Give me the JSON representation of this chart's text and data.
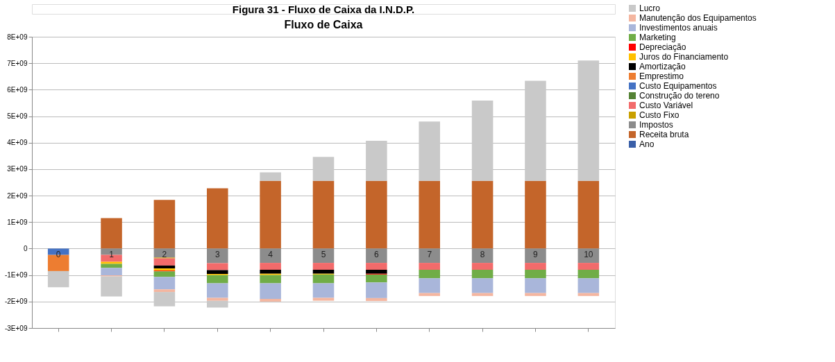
{
  "chart_data": {
    "type": "bar",
    "stacked": true,
    "title": "Fluxo de Caixa",
    "annotations": [
      "Figura 31 - Fluxo de Caixa da I.N.D.P."
    ],
    "categories": [
      null,
      null,
      null,
      null,
      null,
      null,
      null,
      null,
      null,
      null,
      null
    ],
    "ylim": [
      -3000000000.0,
      8000000000.0
    ],
    "yticks": [
      {
        "value": -3000000000.0,
        "label": "-3E+09"
      },
      {
        "value": -2000000000.0,
        "label": "-2E+09"
      },
      {
        "value": -1000000000.0,
        "label": "-1E+09"
      },
      0,
      {
        "value": 1000000000.0,
        "label": "1E+09"
      },
      {
        "value": 2000000000.0,
        "label": "2E+09"
      },
      {
        "value": 3000000000.0,
        "label": "3E+09"
      },
      {
        "value": 4000000000.0,
        "label": "4E+09"
      },
      {
        "value": 5000000000.0,
        "label": "5E+09"
      },
      {
        "value": 6000000000.0,
        "label": "6E+09"
      },
      {
        "value": 7000000000.0,
        "label": "7E+09"
      },
      {
        "value": 8000000000.0,
        "label": "8E+09"
      }
    ],
    "grid": "y",
    "legend": "right",
    "tick_labels": "y",
    "series": [
      {
        "name": "Ano",
        "color": "#3a5fa8",
        "values": [
          0,
          1,
          2,
          3,
          4,
          5,
          6,
          7,
          8,
          9,
          10
        ],
        "value_labels": [
          "0",
          "1",
          "2",
          "3",
          "4",
          "5",
          "6",
          "7",
          "8",
          "9",
          "10"
        ]
      },
      {
        "name": "Receita bruta",
        "color": "#c4652a",
        "values": [
          null,
          1150000000.0,
          1840000000.0,
          2280000000.0,
          2560000000.0,
          2560000000.0,
          2560000000.0,
          2560000000.0,
          2560000000.0,
          2560000000.0,
          2560000000.0
        ]
      },
      {
        "name": "Impostos",
        "color": "#8c8c8c",
        "values": [
          null,
          -240000000.0,
          -340000000.0,
          -550000000.0,
          -540000000.0,
          -540000000.0,
          -540000000.0,
          -540000000.0,
          -540000000.0,
          -540000000.0,
          -540000000.0
        ]
      },
      {
        "name": "Custo Fixo",
        "color": "#c9a000",
        "values": [
          null,
          null,
          -30000000.0,
          null,
          null,
          null,
          null,
          null,
          null,
          null,
          null
        ]
      },
      {
        "name": "Custo Variável",
        "color": "#f26b6b",
        "values": [
          null,
          -260000000.0,
          -270000000.0,
          -260000000.0,
          -260000000.0,
          -260000000.0,
          -260000000.0,
          -260000000.0,
          -260000000.0,
          -260000000.0,
          -260000000.0
        ]
      },
      {
        "name": "Construção do tereno",
        "color": "#548235",
        "values": [
          null,
          null,
          null,
          null,
          null,
          null,
          null,
          null,
          null,
          null,
          null
        ]
      },
      {
        "name": "Custo Equipamentos",
        "color": "#4472c4",
        "values": [
          -240000000.0,
          null,
          null,
          null,
          null,
          null,
          null,
          null,
          null,
          null,
          null
        ]
      },
      {
        "name": "Emprestimo",
        "color": "#ed7d31",
        "values": [
          -610000000.0,
          null,
          null,
          null,
          null,
          null,
          null,
          null,
          null,
          null,
          null
        ]
      },
      {
        "name": "Amortização",
        "color": "#000000",
        "values": [
          null,
          null,
          -110000000.0,
          -150000000.0,
          -150000000.0,
          -150000000.0,
          -150000000.0,
          null,
          null,
          null,
          null
        ]
      },
      {
        "name": "Juros do Financiamento",
        "color": "#ffc000",
        "values": [
          null,
          -80000000.0,
          -80000000.0,
          -40000000.0,
          -50000000.0,
          -30000000.0,
          null,
          null,
          null,
          null,
          null
        ]
      },
      {
        "name": "Depreciação",
        "color": "#ff0000",
        "values": [
          null,
          null,
          -30000000.0,
          null,
          null,
          null,
          -30000000.0,
          null,
          null,
          null,
          null
        ]
      },
      {
        "name": "Marketing",
        "color": "#70ad47",
        "values": [
          null,
          -150000000.0,
          -210000000.0,
          -310000000.0,
          -310000000.0,
          -330000000.0,
          -300000000.0,
          -320000000.0,
          -320000000.0,
          -320000000.0,
          -320000000.0
        ]
      },
      {
        "name": "Investimentos anuais",
        "color": "#a9b6da",
        "values": [
          null,
          -280000000.0,
          -470000000.0,
          -550000000.0,
          -590000000.0,
          -550000000.0,
          -590000000.0,
          -560000000.0,
          -560000000.0,
          -560000000.0,
          -560000000.0
        ]
      },
      {
        "name": "Manutenção dos Equipamentos",
        "color": "#f4b6a0",
        "values": [
          null,
          -40000000.0,
          -100000000.0,
          -110000000.0,
          -100000000.0,
          -110000000.0,
          -110000000.0,
          -110000000.0,
          -110000000.0,
          -110000000.0,
          -110000000.0
        ]
      },
      {
        "name": "Lucro",
        "color": "#c9c9c9",
        "values": [
          -610000000.0,
          -760000000.0,
          -540000000.0,
          -260000000.0,
          320000000.0,
          900000000.0,
          1510000000.0,
          2240000000.0,
          3030000000.0,
          3780000000.0,
          4540000000.0
        ]
      }
    ]
  }
}
